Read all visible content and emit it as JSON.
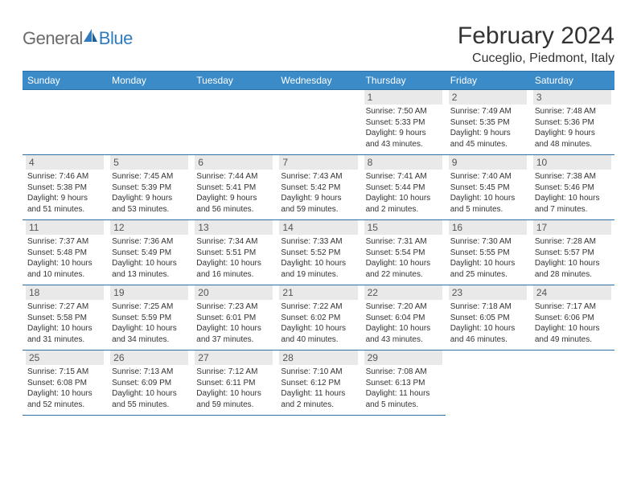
{
  "brand": {
    "general": "General",
    "blue": "Blue"
  },
  "title": "February 2024",
  "location": "Cuceglio, Piedmont, Italy",
  "colors": {
    "header_bg": "#3b8bc9",
    "header_border": "#2d6fa3",
    "daynum_bg": "#e9e9e9",
    "logo_gray": "#6b6b6b",
    "logo_blue": "#2f7bbf"
  },
  "day_headers": [
    "Sunday",
    "Monday",
    "Tuesday",
    "Wednesday",
    "Thursday",
    "Friday",
    "Saturday"
  ],
  "weeks": [
    [
      null,
      null,
      null,
      null,
      {
        "n": "1",
        "sr": "7:50 AM",
        "ss": "5:33 PM",
        "dl": "9 hours and 43 minutes."
      },
      {
        "n": "2",
        "sr": "7:49 AM",
        "ss": "5:35 PM",
        "dl": "9 hours and 45 minutes."
      },
      {
        "n": "3",
        "sr": "7:48 AM",
        "ss": "5:36 PM",
        "dl": "9 hours and 48 minutes."
      }
    ],
    [
      {
        "n": "4",
        "sr": "7:46 AM",
        "ss": "5:38 PM",
        "dl": "9 hours and 51 minutes."
      },
      {
        "n": "5",
        "sr": "7:45 AM",
        "ss": "5:39 PM",
        "dl": "9 hours and 53 minutes."
      },
      {
        "n": "6",
        "sr": "7:44 AM",
        "ss": "5:41 PM",
        "dl": "9 hours and 56 minutes."
      },
      {
        "n": "7",
        "sr": "7:43 AM",
        "ss": "5:42 PM",
        "dl": "9 hours and 59 minutes."
      },
      {
        "n": "8",
        "sr": "7:41 AM",
        "ss": "5:44 PM",
        "dl": "10 hours and 2 minutes."
      },
      {
        "n": "9",
        "sr": "7:40 AM",
        "ss": "5:45 PM",
        "dl": "10 hours and 5 minutes."
      },
      {
        "n": "10",
        "sr": "7:38 AM",
        "ss": "5:46 PM",
        "dl": "10 hours and 7 minutes."
      }
    ],
    [
      {
        "n": "11",
        "sr": "7:37 AM",
        "ss": "5:48 PM",
        "dl": "10 hours and 10 minutes."
      },
      {
        "n": "12",
        "sr": "7:36 AM",
        "ss": "5:49 PM",
        "dl": "10 hours and 13 minutes."
      },
      {
        "n": "13",
        "sr": "7:34 AM",
        "ss": "5:51 PM",
        "dl": "10 hours and 16 minutes."
      },
      {
        "n": "14",
        "sr": "7:33 AM",
        "ss": "5:52 PM",
        "dl": "10 hours and 19 minutes."
      },
      {
        "n": "15",
        "sr": "7:31 AM",
        "ss": "5:54 PM",
        "dl": "10 hours and 22 minutes."
      },
      {
        "n": "16",
        "sr": "7:30 AM",
        "ss": "5:55 PM",
        "dl": "10 hours and 25 minutes."
      },
      {
        "n": "17",
        "sr": "7:28 AM",
        "ss": "5:57 PM",
        "dl": "10 hours and 28 minutes."
      }
    ],
    [
      {
        "n": "18",
        "sr": "7:27 AM",
        "ss": "5:58 PM",
        "dl": "10 hours and 31 minutes."
      },
      {
        "n": "19",
        "sr": "7:25 AM",
        "ss": "5:59 PM",
        "dl": "10 hours and 34 minutes."
      },
      {
        "n": "20",
        "sr": "7:23 AM",
        "ss": "6:01 PM",
        "dl": "10 hours and 37 minutes."
      },
      {
        "n": "21",
        "sr": "7:22 AM",
        "ss": "6:02 PM",
        "dl": "10 hours and 40 minutes."
      },
      {
        "n": "22",
        "sr": "7:20 AM",
        "ss": "6:04 PM",
        "dl": "10 hours and 43 minutes."
      },
      {
        "n": "23",
        "sr": "7:18 AM",
        "ss": "6:05 PM",
        "dl": "10 hours and 46 minutes."
      },
      {
        "n": "24",
        "sr": "7:17 AM",
        "ss": "6:06 PM",
        "dl": "10 hours and 49 minutes."
      }
    ],
    [
      {
        "n": "25",
        "sr": "7:15 AM",
        "ss": "6:08 PM",
        "dl": "10 hours and 52 minutes."
      },
      {
        "n": "26",
        "sr": "7:13 AM",
        "ss": "6:09 PM",
        "dl": "10 hours and 55 minutes."
      },
      {
        "n": "27",
        "sr": "7:12 AM",
        "ss": "6:11 PM",
        "dl": "10 hours and 59 minutes."
      },
      {
        "n": "28",
        "sr": "7:10 AM",
        "ss": "6:12 PM",
        "dl": "11 hours and 2 minutes."
      },
      {
        "n": "29",
        "sr": "7:08 AM",
        "ss": "6:13 PM",
        "dl": "11 hours and 5 minutes."
      },
      null,
      null
    ]
  ],
  "labels": {
    "sunrise": "Sunrise:",
    "sunset": "Sunset:",
    "daylight": "Daylight:"
  }
}
